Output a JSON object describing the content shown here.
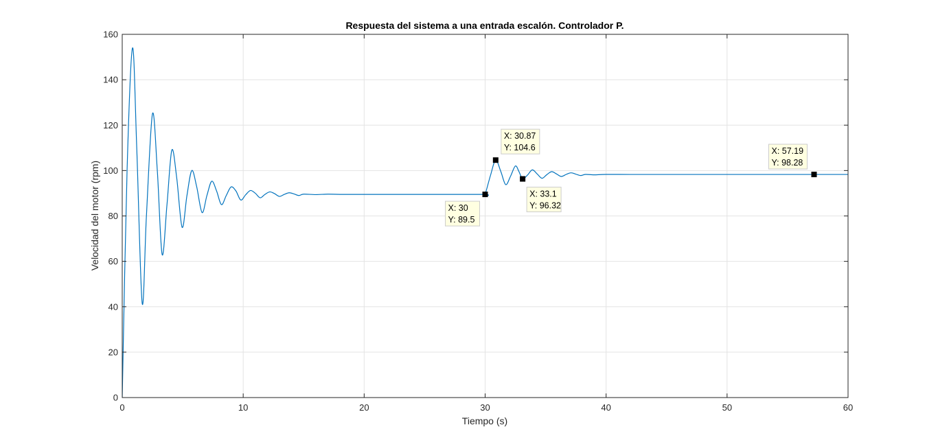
{
  "chart_data": {
    "type": "line",
    "title": "Respuesta del sistema a una entrada escalón. Controlador P.",
    "xlabel": "Tiempo (s)",
    "ylabel": "Velocidad del motor (rpm)",
    "xlim": [
      0,
      60
    ],
    "ylim": [
      0,
      160
    ],
    "xticks": [
      0,
      10,
      20,
      30,
      40,
      50,
      60
    ],
    "yticks": [
      0,
      20,
      40,
      60,
      80,
      100,
      120,
      140,
      160
    ],
    "grid": true,
    "legend": "none",
    "colors": {
      "line": "#0072BD",
      "marker": "#000000",
      "tip_bg": "#FFFFE1",
      "tip_border": "#CCCCCC",
      "grid": "#E3E3E3",
      "axis": "#262626"
    },
    "series": [
      {
        "x": [
          0,
          0.4,
          0.85,
          1.2,
          1.65,
          2.0,
          2.5,
          2.9,
          3.3,
          3.7,
          4.1,
          4.5,
          4.95,
          5.35,
          5.75,
          6.15,
          6.6,
          7.0,
          7.4,
          7.8,
          8.2,
          8.6,
          9.0,
          9.4,
          9.8,
          10.2,
          10.6,
          11.0,
          11.4,
          11.8,
          12.2,
          12.6,
          13.0,
          13.4,
          13.8,
          14.2,
          14.6,
          15.0,
          16.0,
          17.0,
          18.0,
          20.0,
          25.0,
          29.9,
          30.0,
          30.45,
          30.87,
          31.3,
          31.7,
          32.1,
          32.5,
          32.8,
          33.1,
          33.5,
          33.9,
          34.3,
          34.7,
          35.1,
          35.5,
          35.9,
          36.3,
          36.7,
          37.1,
          37.5,
          37.9,
          38.3,
          39.0,
          40.0,
          42.0,
          45.0,
          50.0,
          55.0,
          57.19,
          60.0
        ],
        "y": [
          0,
          100,
          154,
          110,
          41.5,
          80,
          125,
          100,
          63,
          85,
          109,
          97,
          75,
          89,
          100,
          93,
          81.5,
          89,
          95.3,
          91,
          85,
          89,
          92.8,
          91,
          87,
          89.3,
          91.2,
          90,
          88,
          89.5,
          90.6,
          89.8,
          88.6,
          89.5,
          90.2,
          89.7,
          89.0,
          89.6,
          89.4,
          89.6,
          89.5,
          89.5,
          89.5,
          89.5,
          89.5,
          98,
          104.6,
          99.5,
          93.8,
          97.5,
          102,
          99.5,
          96.32,
          98,
          100.3,
          98.5,
          96.6,
          98.2,
          99.5,
          98.5,
          97.4,
          98.3,
          99.0,
          98.4,
          97.8,
          98.3,
          98.1,
          98.3,
          98.28,
          98.28,
          98.28,
          98.28,
          98.28,
          98.28
        ]
      }
    ],
    "datatips": [
      {
        "x": 30,
        "y": 89.5,
        "x_label": "X: 30",
        "y_label": "Y: 89.5",
        "side": "below-left"
      },
      {
        "x": 30.87,
        "y": 104.6,
        "x_label": "X: 30.87",
        "y_label": "Y: 104.6",
        "side": "above-right"
      },
      {
        "x": 33.1,
        "y": 96.32,
        "x_label": "X: 33.1",
        "y_label": "Y: 96.32",
        "side": "below-right"
      },
      {
        "x": 57.19,
        "y": 98.28,
        "x_label": "X: 57.19",
        "y_label": "Y: 98.28",
        "side": "above-left"
      }
    ]
  }
}
